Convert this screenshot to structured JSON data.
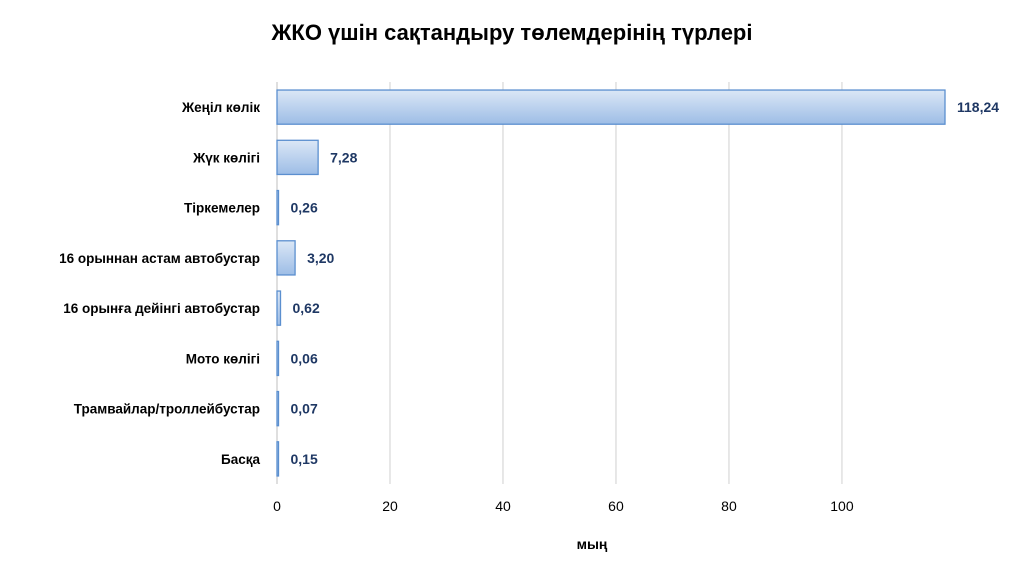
{
  "chart_data": {
    "type": "bar",
    "orientation": "horizontal",
    "title": "ЖКО үшін сақтандыру төлемдерінің түрлері",
    "xlabel": "мың",
    "ylabel": "",
    "categories": [
      "Жеңіл көлік",
      "Жүк көлігі",
      "Тіркемелер",
      "16 орыннан астам автобустар",
      "16 орынға дейінгі автобустар",
      "Мото көлігі",
      "Трамвайлар/троллейбустар",
      "Басқа"
    ],
    "values": [
      118.24,
      7.28,
      0.26,
      3.2,
      0.62,
      0.06,
      0.07,
      0.15
    ],
    "value_labels": [
      "118,24",
      "7,28",
      "0,26",
      "3,20",
      "0,62",
      "0,06",
      "0,07",
      "0,15"
    ],
    "xlim": [
      0,
      118.24
    ],
    "xticks": [
      0,
      20,
      40,
      60,
      80,
      100
    ],
    "xtick_labels": [
      "0",
      "20",
      "40",
      "60",
      "80",
      "100"
    ],
    "grid": true,
    "legend": "none",
    "bar_fill_top": "#dbe7f6",
    "bar_fill_bottom": "#9dbde6",
    "bar_stroke": "#5b8fcf",
    "value_label_color": "#1f3864"
  }
}
